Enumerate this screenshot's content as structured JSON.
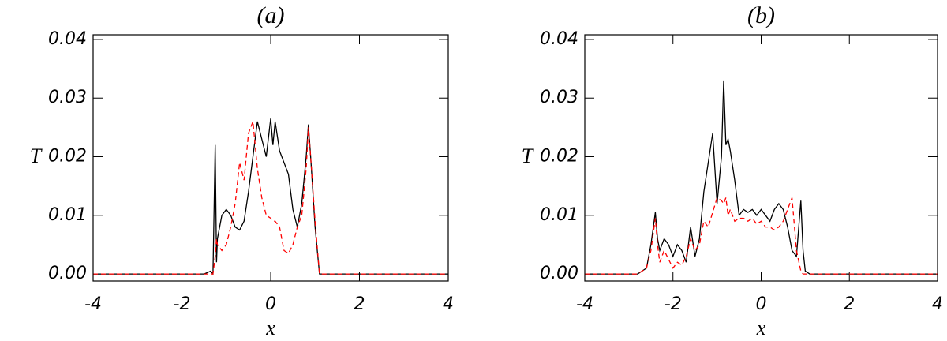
{
  "chart_data": [
    {
      "type": "line",
      "title": "(a)",
      "xlabel": "x",
      "ylabel": "T",
      "x": [
        -4,
        -1.5,
        -1.35,
        -1.3,
        -1.25,
        -1.22,
        -1.2,
        -1.1,
        -1.0,
        -0.9,
        -0.8,
        -0.7,
        -0.6,
        -0.5,
        -0.4,
        -0.3,
        -0.2,
        -0.1,
        0,
        0.05,
        0.1,
        0.2,
        0.3,
        0.4,
        0.5,
        0.6,
        0.7,
        0.8,
        0.85,
        0.9,
        1.0,
        1.1,
        1.2,
        4
      ],
      "series": [
        {
          "color": "#000000",
          "dashed": false,
          "values": [
            0,
            0,
            0.0005,
            0,
            0.022,
            0.002,
            0.006,
            0.01,
            0.011,
            0.01,
            0.008,
            0.0075,
            0.009,
            0.014,
            0.02,
            0.026,
            0.023,
            0.02,
            0.0265,
            0.022,
            0.026,
            0.021,
            0.019,
            0.017,
            0.011,
            0.008,
            0.012,
            0.02,
            0.0255,
            0.02,
            0.008,
            0,
            0,
            0
          ]
        },
        {
          "color": "#ff0000",
          "dashed": true,
          "values": [
            0,
            0,
            0,
            0,
            0.003,
            0.006,
            0.005,
            0.004,
            0.005,
            0.008,
            0.012,
            0.019,
            0.016,
            0.024,
            0.026,
            0.018,
            0.013,
            0.01,
            0.0095,
            0.009,
            0.009,
            0.008,
            0.004,
            0.0035,
            0.005,
            0.008,
            0.01,
            0.018,
            0.025,
            0.02,
            0.009,
            0,
            0,
            0
          ]
        }
      ],
      "xlim": [
        -4,
        4
      ],
      "ylim": [
        -0.0012,
        0.0408
      ],
      "xticks": [
        -4,
        -2,
        0,
        2,
        4
      ],
      "yticks": [
        {
          "value": 0,
          "label": "0.00"
        },
        0.01,
        0.02,
        0.03,
        0.04
      ]
    },
    {
      "type": "line",
      "title": "(b)",
      "xlabel": "x",
      "ylabel": "T",
      "x": [
        -4,
        -2.8,
        -2.6,
        -2.5,
        -2.4,
        -2.35,
        -2.3,
        -2.2,
        -2.1,
        -2.0,
        -1.9,
        -1.8,
        -1.7,
        -1.6,
        -1.5,
        -1.4,
        -1.3,
        -1.2,
        -1.1,
        -1.0,
        -0.9,
        -0.85,
        -0.8,
        -0.75,
        -0.7,
        -0.6,
        -0.5,
        -0.4,
        -0.3,
        -0.2,
        -0.1,
        0,
        0.1,
        0.2,
        0.3,
        0.4,
        0.5,
        0.6,
        0.7,
        0.8,
        0.9,
        0.95,
        1.0,
        1.1,
        4
      ],
      "series": [
        {
          "color": "#000000",
          "dashed": false,
          "values": [
            0,
            0,
            0.001,
            0.005,
            0.0105,
            0.006,
            0.004,
            0.006,
            0.005,
            0.003,
            0.005,
            0.004,
            0.002,
            0.008,
            0.003,
            0.006,
            0.014,
            0.019,
            0.024,
            0.012,
            0.02,
            0.033,
            0.022,
            0.023,
            0.021,
            0.016,
            0.01,
            0.011,
            0.0105,
            0.011,
            0.01,
            0.011,
            0.01,
            0.009,
            0.011,
            0.012,
            0.011,
            0.008,
            0.004,
            0.003,
            0.0125,
            0.004,
            0.0005,
            0,
            0
          ]
        },
        {
          "color": "#ff0000",
          "dashed": true,
          "values": [
            0,
            0,
            0.001,
            0.004,
            0.0095,
            0.005,
            0.002,
            0.004,
            0.0025,
            0.001,
            0.002,
            0.0015,
            0.003,
            0.006,
            0.004,
            0.005,
            0.009,
            0.008,
            0.0105,
            0.013,
            0.0125,
            0.012,
            0.013,
            0.01,
            0.011,
            0.009,
            0.0095,
            0.0095,
            0.009,
            0.0095,
            0.0085,
            0.009,
            0.008,
            0.008,
            0.0075,
            0.008,
            0.009,
            0.011,
            0.013,
            0.004,
            0.0005,
            0,
            0,
            0,
            0
          ]
        }
      ],
      "xlim": [
        -4,
        4
      ],
      "ylim": [
        -0.0012,
        0.0408
      ],
      "xticks": [
        -4,
        -2,
        0,
        2,
        4
      ],
      "yticks": [
        {
          "value": 0,
          "label": "0.00"
        },
        0.01,
        0.02,
        0.03,
        0.04
      ]
    }
  ]
}
